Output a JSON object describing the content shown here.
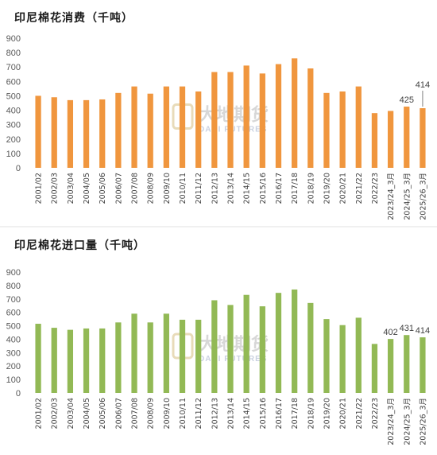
{
  "watermark": {
    "cn": "大地期货",
    "en": "DADI FUTURES"
  },
  "chart_data": [
    {
      "type": "bar",
      "title": "印尼棉花消费（千吨）",
      "color": "#F0963E",
      "ylim": [
        0,
        900
      ],
      "yticks": [
        0,
        100,
        200,
        300,
        400,
        500,
        600,
        700,
        800,
        900
      ],
      "grid": false,
      "categories": [
        "2001/02",
        "2002/03",
        "2003/04",
        "2004/05",
        "2005/06",
        "2006/07",
        "2007/08",
        "2008/09",
        "2009/10",
        "2010/11",
        "2011/12",
        "2012/13",
        "2013/14",
        "2014/15",
        "2015/16",
        "2016/17",
        "2017/18",
        "2018/19",
        "2019/20",
        "2020/21",
        "2021/22",
        "2022/23",
        "2023/24_3月",
        "2024/25_3月",
        "2025/26_3月"
      ],
      "values": [
        500,
        490,
        470,
        470,
        475,
        520,
        565,
        515,
        565,
        565,
        530,
        665,
        665,
        710,
        655,
        720,
        760,
        690,
        520,
        530,
        565,
        380,
        395,
        425,
        414
      ],
      "data_labels": [
        {
          "index": 23,
          "text": "425"
        },
        {
          "index": 24,
          "text": "414"
        }
      ]
    },
    {
      "type": "bar",
      "title": "印尼棉花进口量（千吨）",
      "color": "#92B955",
      "ylim": [
        0,
        900
      ],
      "yticks": [
        0,
        100,
        200,
        300,
        400,
        500,
        600,
        700,
        800,
        900
      ],
      "grid": false,
      "categories": [
        "2001/02",
        "2002/03",
        "2003/04",
        "2004/05",
        "2005/06",
        "2006/07",
        "2007/08",
        "2008/09",
        "2009/10",
        "2010/11",
        "2011/12",
        "2012/13",
        "2013/14",
        "2014/15",
        "2015/16",
        "2016/17",
        "2017/18",
        "2018/19",
        "2019/20",
        "2020/21",
        "2021/22",
        "2022/23",
        "2023/24_3月",
        "2024/25_3月",
        "2025/26_3月"
      ],
      "values": [
        515,
        485,
        470,
        480,
        480,
        525,
        590,
        525,
        590,
        545,
        545,
        690,
        655,
        730,
        645,
        745,
        770,
        670,
        550,
        505,
        560,
        365,
        402,
        431,
        414
      ],
      "data_labels": [
        {
          "index": 22,
          "text": "402"
        },
        {
          "index": 23,
          "text": "431"
        },
        {
          "index": 24,
          "text": "414"
        }
      ]
    }
  ]
}
